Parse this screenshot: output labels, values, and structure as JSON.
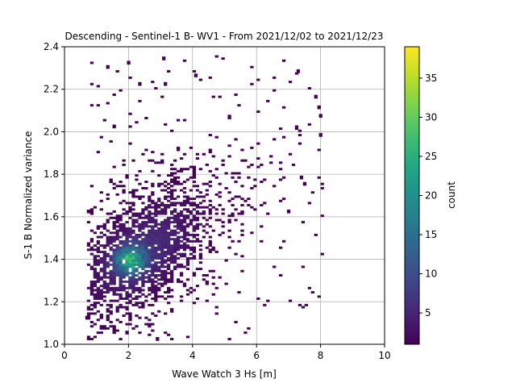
{
  "chart_data": {
    "type": "heatmap",
    "title": "Descending - Sentinel-1 B- WV1 - From 2021/12/02 to 2021/12/23",
    "xlabel": "Wave Watch 3 Hs [m]",
    "ylabel": "S-1 B Normalized variance",
    "xlim": [
      0,
      10
    ],
    "ylim": [
      1.0,
      2.4
    ],
    "xticks": [
      "0",
      "2",
      "4",
      "6",
      "8",
      "10"
    ],
    "yticks": [
      "1.0",
      "1.2",
      "1.4",
      "1.6",
      "1.8",
      "2.0",
      "2.2",
      "2.4"
    ],
    "grid": true,
    "colorbar": {
      "label": "count",
      "colormap": "viridis",
      "range": [
        1,
        39
      ],
      "ticks": [
        "5",
        "10",
        "15",
        "20",
        "25",
        "30",
        "35"
      ]
    },
    "bin_size": {
      "x": 0.1,
      "y": 0.01
    },
    "density_model": {
      "peak_count": 38,
      "peak_location": {
        "x": 2.0,
        "y": 1.39
      },
      "main_regression": {
        "x_center": 2.4,
        "y_at_center": 1.43,
        "slope": 0.075
      },
      "sparse_extent": {
        "x": [
          0.7,
          8.0
        ],
        "y": [
          1.02,
          2.35
        ]
      }
    },
    "notable_points": [
      {
        "x": 0.65,
        "y": 1.12
      },
      {
        "x": 0.7,
        "y": 1.12
      },
      {
        "x": 1.3,
        "y": 2.3
      },
      {
        "x": 1.95,
        "y": 2.32
      },
      {
        "x": 3.05,
        "y": 2.34
      },
      {
        "x": 4.05,
        "y": 2.26
      },
      {
        "x": 7.25,
        "y": 2.28
      },
      {
        "x": 7.8,
        "y": 2.16
      },
      {
        "x": 7.9,
        "y": 2.11
      },
      {
        "x": 7.95,
        "y": 2.07
      },
      {
        "x": 7.95,
        "y": 1.98
      },
      {
        "x": 7.45,
        "y": 1.75
      },
      {
        "x": 7.35,
        "y": 1.78
      },
      {
        "x": 2.85,
        "y": 1.02
      },
      {
        "x": 1.9,
        "y": 1.05
      },
      {
        "x": 1.1,
        "y": 1.13
      },
      {
        "x": 0.7,
        "y": 1.62
      },
      {
        "x": 6.95,
        "y": 1.62
      },
      {
        "x": 2.3,
        "y": 2.22
      },
      {
        "x": 3.1,
        "y": 2.22
      },
      {
        "x": 1.5,
        "y": 2.02
      }
    ]
  }
}
